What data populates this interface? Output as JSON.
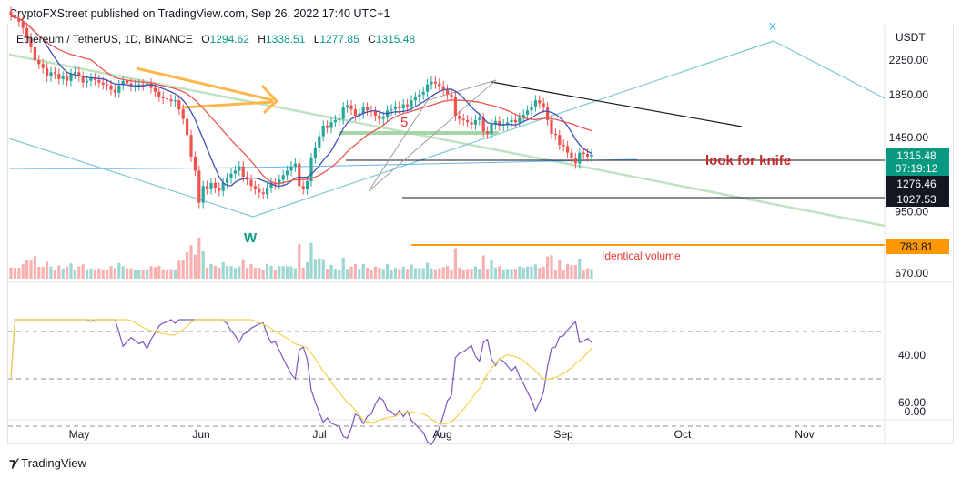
{
  "header": {
    "published": "CryptoFXStreet published on TradingView.com, Sep 26, 2022 17:40 UTC+1"
  },
  "legend": {
    "symbol": "Ethereum / TetherUS, 1D, BINANCE",
    "open_label": "O",
    "open": "1294.62",
    "high_label": "H",
    "high": "1338.51",
    "low_label": "L",
    "low": "1277.85",
    "close_label": "C",
    "close": "1315.48"
  },
  "footer": {
    "brand": "TradingView"
  },
  "colors": {
    "up": "#26a69a",
    "down": "#ef5350",
    "ma_fast": "#3f51b5",
    "ma_slow": "#ef5350",
    "rsi": "#7e57c2",
    "rsi_ma": "#f2d24b",
    "orange": "#ff9800",
    "teal_line": "#7fc8d8",
    "green_line": "#a5d6a7",
    "label_red": "#c62828",
    "badge_green": "#089981"
  },
  "chart_data": {
    "type": "candlestick",
    "currency": "USDT",
    "y_axis_ticks": [
      "2250.00",
      "1850.00",
      "1450.00",
      "950.00",
      "670.00"
    ],
    "y_axis_values": [
      2250,
      1850,
      1450,
      950,
      670
    ],
    "ylim": [
      620,
      2620
    ],
    "x_axis_labels": [
      "May",
      "Jun",
      "Jul",
      "Aug",
      "Sep",
      "Oct",
      "Nov"
    ],
    "price_labels": {
      "last_price": "1315.48",
      "countdown": "07:19:12",
      "level_1": "1276.46",
      "level_2": "1027.53",
      "level_3": "783.81"
    },
    "annotations": {
      "knife": "look for knife",
      "volume": "Identical volume",
      "w_mark": "W",
      "five_mark": "5",
      "x_mark": "x"
    },
    "rsi": {
      "ticks": [
        "60.00",
        "40.00",
        "0.00"
      ],
      "tick_values": [
        60,
        40,
        0
      ],
      "upper_band": 70,
      "mid_band": 50,
      "lower_band": 30
    },
    "closes": [
      2900,
      2850,
      2800,
      2700,
      2550,
      2420,
      2250,
      2200,
      2150,
      2050,
      2100,
      2080,
      2020,
      2050,
      2000,
      2080,
      2100,
      2050,
      1980,
      2000,
      2030,
      2010,
      1980,
      1960,
      1950,
      1900,
      1870,
      1950,
      2000,
      1970,
      1940,
      1950,
      1960,
      1950,
      1970,
      1920,
      1880,
      1830,
      1810,
      1800,
      1780,
      1790,
      1700,
      1610,
      1470,
      1300,
      1200,
      1000,
      1100,
      1080,
      1120,
      1090,
      1070,
      1120,
      1150,
      1180,
      1200,
      1230,
      1160,
      1140,
      1100,
      1080,
      1060,
      1050,
      1090,
      1120,
      1110,
      1140,
      1170,
      1200,
      1230,
      1250,
      1100,
      1080,
      1130,
      1290,
      1370,
      1460,
      1550,
      1530,
      1580,
      1600,
      1610,
      1720,
      1740,
      1700,
      1640,
      1660,
      1720,
      1690,
      1680,
      1640,
      1610,
      1630,
      1690,
      1700,
      1730,
      1710,
      1750,
      1730,
      1790,
      1820,
      1850,
      1880,
      1960,
      1990,
      1970,
      1940,
      1900,
      1850,
      1830,
      1640,
      1610,
      1600,
      1580,
      1560,
      1600,
      1620,
      1500,
      1480,
      1560,
      1590,
      1550,
      1560,
      1580,
      1600,
      1580,
      1620,
      1650,
      1690,
      1730,
      1790,
      1760,
      1720,
      1600,
      1480,
      1470,
      1390,
      1380,
      1330,
      1290,
      1250,
      1330,
      1320,
      1300,
      1315
    ],
    "volume_note": "volume bars shown in lower pane, scaled to price pane"
  }
}
